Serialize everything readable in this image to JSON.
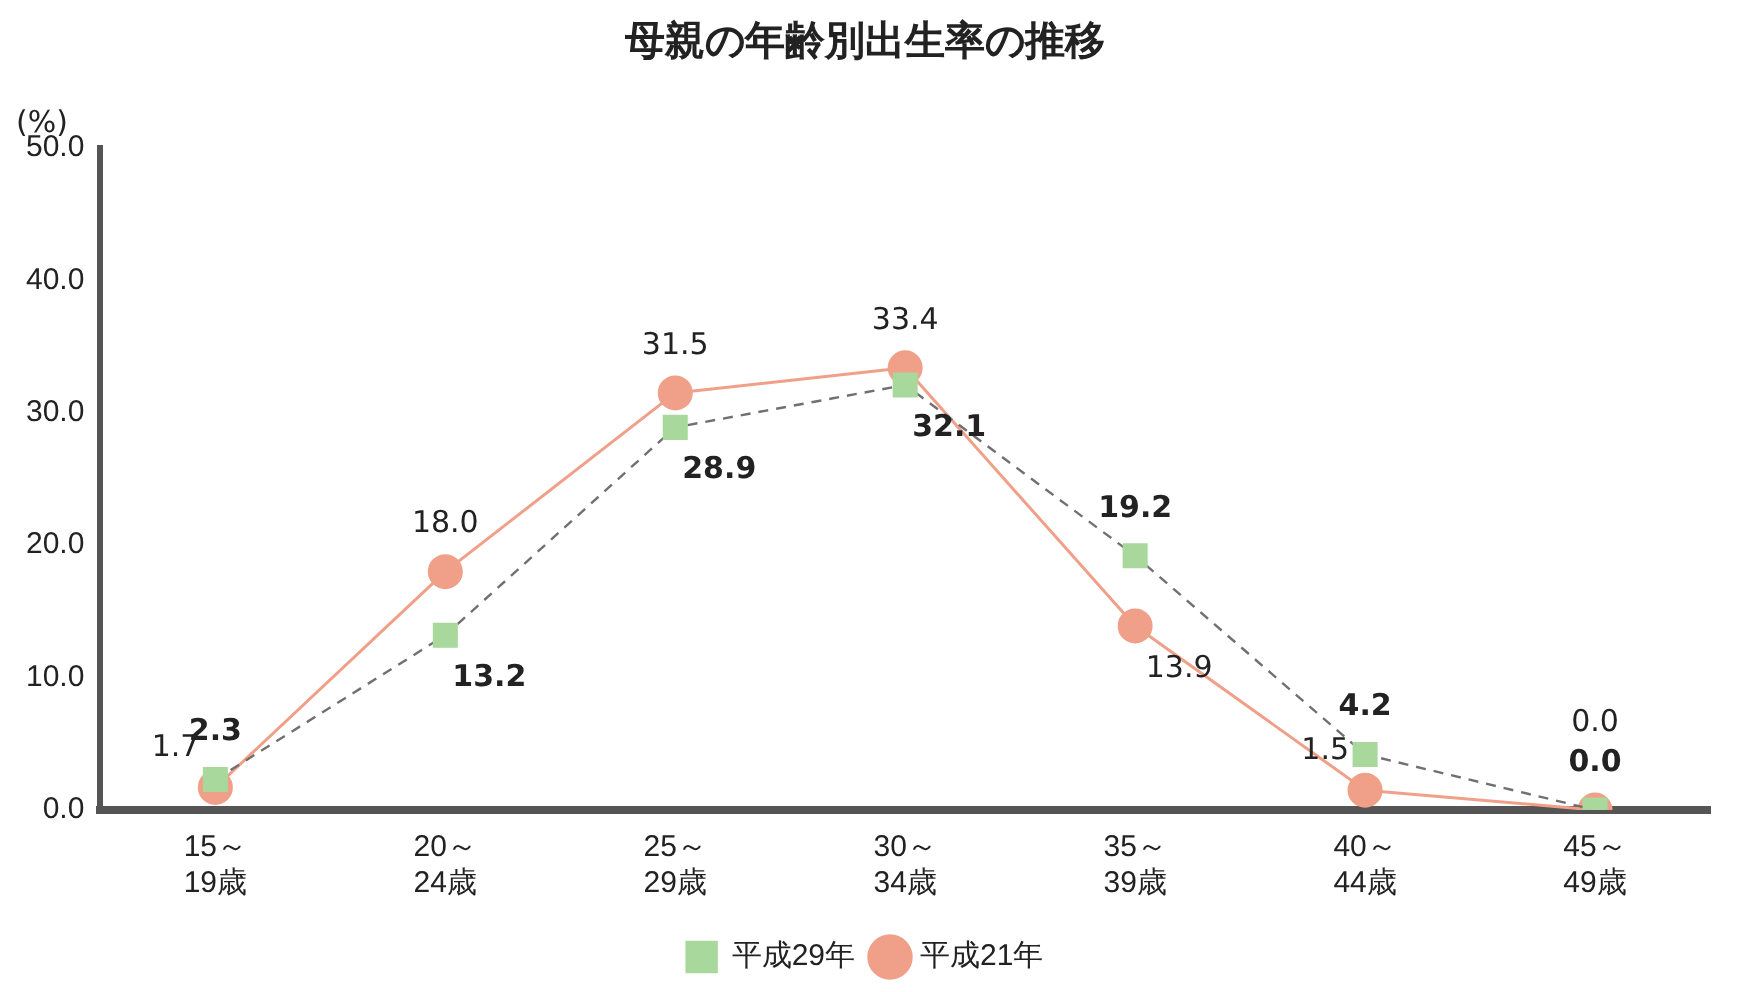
{
  "chart_data": {
    "type": "line",
    "title": "母親の年齢別出生率の推移",
    "ylabel": "(%)",
    "categories": [
      "15～\n19歳",
      "20～\n24歳",
      "25～\n29歳",
      "30～\n34歳",
      "35～\n39歳",
      "40～\n44歳",
      "45～\n49歳"
    ],
    "series": [
      {
        "name": "平成29年",
        "color": "#a8d89c",
        "values": [
          2.3,
          13.2,
          28.9,
          32.1,
          19.2,
          4.2,
          0.0
        ],
        "value_labels": [
          "2.3",
          "13.2",
          "28.9",
          "32.1",
          "19.2",
          "4.2",
          "0.0"
        ],
        "marker": "square",
        "line_style": "dashed"
      },
      {
        "name": "平成21年",
        "color": "#f0a088",
        "values": [
          1.7,
          18.0,
          31.5,
          33.4,
          13.9,
          1.5,
          0.0
        ],
        "value_labels": [
          "1.7",
          "18.0",
          "31.5",
          "33.4",
          "13.9",
          "1.5",
          "0.0"
        ],
        "marker": "circle",
        "line_style": "solid"
      }
    ],
    "ylim": [
      0,
      50
    ],
    "yticks": [
      {
        "value": 0,
        "label": "0.0"
      },
      {
        "value": 10,
        "label": "10.0"
      },
      {
        "value": 20,
        "label": "20.0"
      },
      {
        "value": 30,
        "label": "30.0"
      },
      {
        "value": 40,
        "label": "40.0"
      },
      {
        "value": 50,
        "label": "50.0"
      }
    ],
    "grid": false,
    "legend": "bottom"
  }
}
